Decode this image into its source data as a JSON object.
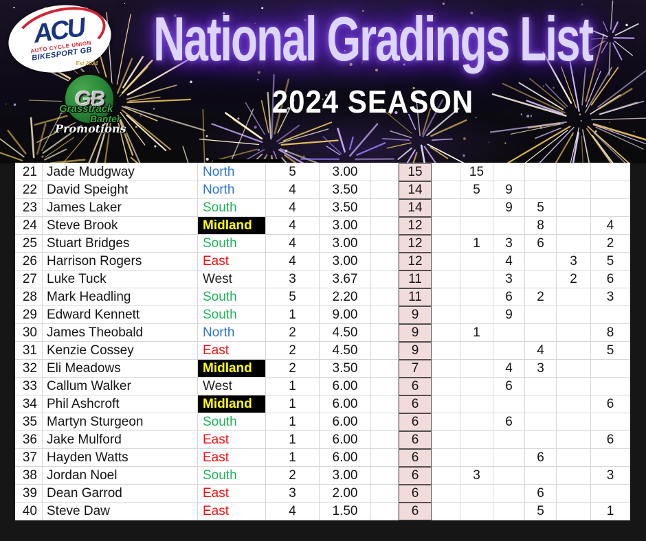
{
  "header": {
    "title": "National Gradings List",
    "season": "2024 SEASON",
    "acu_logo": {
      "name": "ACU",
      "tagline1": "AUTO CYCLE UNION",
      "tagline2": "BIKESPORT GB"
    },
    "gb_logo": {
      "est": "Est 2024",
      "monogram": "GB",
      "brand1": "Grasstrack",
      "brand2": "Banter",
      "brand3": "Promotions"
    }
  },
  "region_colors": {
    "North": "#2e74d2",
    "South": "#1db35a",
    "East": "#f50f0f",
    "West": "#1a1a1a",
    "Midland": "#ffff00"
  },
  "accent_colors": {
    "total_column_bg": "#f2dcdb",
    "title_text": "#dcd6f8",
    "title_glow": "#6a2fd8",
    "midland_cell_bg": "#000000"
  },
  "table": {
    "rows": [
      {
        "pos": 21,
        "name": "Jade Mudgway",
        "region": "North",
        "events": "5",
        "average": "3.00",
        "total": "15",
        "scores": [
          "",
          "15",
          "",
          "",
          "",
          ""
        ]
      },
      {
        "pos": 22,
        "name": "David Speight",
        "region": "North",
        "events": "4",
        "average": "3.50",
        "total": "14",
        "scores": [
          "",
          "5",
          "9",
          "",
          "",
          ""
        ]
      },
      {
        "pos": 23,
        "name": "James Laker",
        "region": "South",
        "events": "4",
        "average": "3.50",
        "total": "14",
        "scores": [
          "",
          "",
          "9",
          "5",
          "",
          ""
        ]
      },
      {
        "pos": 24,
        "name": "Steve Brook",
        "region": "Midland",
        "events": "4",
        "average": "3.00",
        "total": "12",
        "scores": [
          "",
          "",
          "",
          "8",
          "",
          "4"
        ]
      },
      {
        "pos": 25,
        "name": "Stuart Bridges",
        "region": "South",
        "events": "4",
        "average": "3.00",
        "total": "12",
        "scores": [
          "",
          "1",
          "3",
          "6",
          "",
          "2"
        ]
      },
      {
        "pos": 26,
        "name": "Harrison Rogers",
        "region": "East",
        "events": "4",
        "average": "3.00",
        "total": "12",
        "scores": [
          "",
          "",
          "4",
          "",
          "3",
          "5"
        ]
      },
      {
        "pos": 27,
        "name": "Luke Tuck",
        "region": "West",
        "events": "3",
        "average": "3.67",
        "total": "11",
        "scores": [
          "",
          "",
          "3",
          "",
          "2",
          "6"
        ]
      },
      {
        "pos": 28,
        "name": "Mark Headling",
        "region": "South",
        "events": "5",
        "average": "2.20",
        "total": "11",
        "scores": [
          "",
          "",
          "6",
          "2",
          "",
          "3"
        ]
      },
      {
        "pos": 29,
        "name": "Edward Kennett",
        "region": "South",
        "events": "1",
        "average": "9.00",
        "total": "9",
        "scores": [
          "",
          "",
          "9",
          "",
          "",
          ""
        ]
      },
      {
        "pos": 30,
        "name": "James Theobald",
        "region": "North",
        "events": "2",
        "average": "4.50",
        "total": "9",
        "scores": [
          "",
          "1",
          "",
          "",
          "",
          "8"
        ]
      },
      {
        "pos": 31,
        "name": "Kenzie Cossey",
        "region": "East",
        "events": "2",
        "average": "4.50",
        "total": "9",
        "scores": [
          "",
          "",
          "",
          "4",
          "",
          "5"
        ]
      },
      {
        "pos": 32,
        "name": "Eli Meadows",
        "region": "Midland",
        "events": "2",
        "average": "3.50",
        "total": "7",
        "scores": [
          "",
          "",
          "4",
          "3",
          "",
          ""
        ]
      },
      {
        "pos": 33,
        "name": "Callum Walker",
        "region": "West",
        "events": "1",
        "average": "6.00",
        "total": "6",
        "scores": [
          "",
          "",
          "6",
          "",
          "",
          ""
        ]
      },
      {
        "pos": 34,
        "name": "Phil Ashcroft",
        "region": "Midland",
        "events": "1",
        "average": "6.00",
        "total": "6",
        "scores": [
          "",
          "",
          "",
          "",
          "",
          "6"
        ]
      },
      {
        "pos": 35,
        "name": "Martyn Sturgeon",
        "region": "South",
        "events": "1",
        "average": "6.00",
        "total": "6",
        "scores": [
          "",
          "",
          "6",
          "",
          "",
          ""
        ]
      },
      {
        "pos": 36,
        "name": "Jake Mulford",
        "region": "East",
        "events": "1",
        "average": "6.00",
        "total": "6",
        "scores": [
          "",
          "",
          "",
          "",
          "",
          "6"
        ]
      },
      {
        "pos": 37,
        "name": "Hayden Watts",
        "region": "East",
        "events": "1",
        "average": "6.00",
        "total": "6",
        "scores": [
          "",
          "",
          "",
          "6",
          "",
          ""
        ]
      },
      {
        "pos": 38,
        "name": "Jordan Noel",
        "region": "South",
        "events": "2",
        "average": "3.00",
        "total": "6",
        "scores": [
          "",
          "3",
          "",
          "",
          "",
          "3"
        ]
      },
      {
        "pos": 39,
        "name": "Dean Garrod",
        "region": "East",
        "events": "3",
        "average": "2.00",
        "total": "6",
        "scores": [
          "",
          "",
          "",
          "6",
          "",
          ""
        ]
      },
      {
        "pos": 40,
        "name": "Steve Daw",
        "region": "East",
        "events": "4",
        "average": "1.50",
        "total": "6",
        "scores": [
          "",
          "",
          "",
          "5",
          "",
          "1"
        ]
      }
    ]
  }
}
